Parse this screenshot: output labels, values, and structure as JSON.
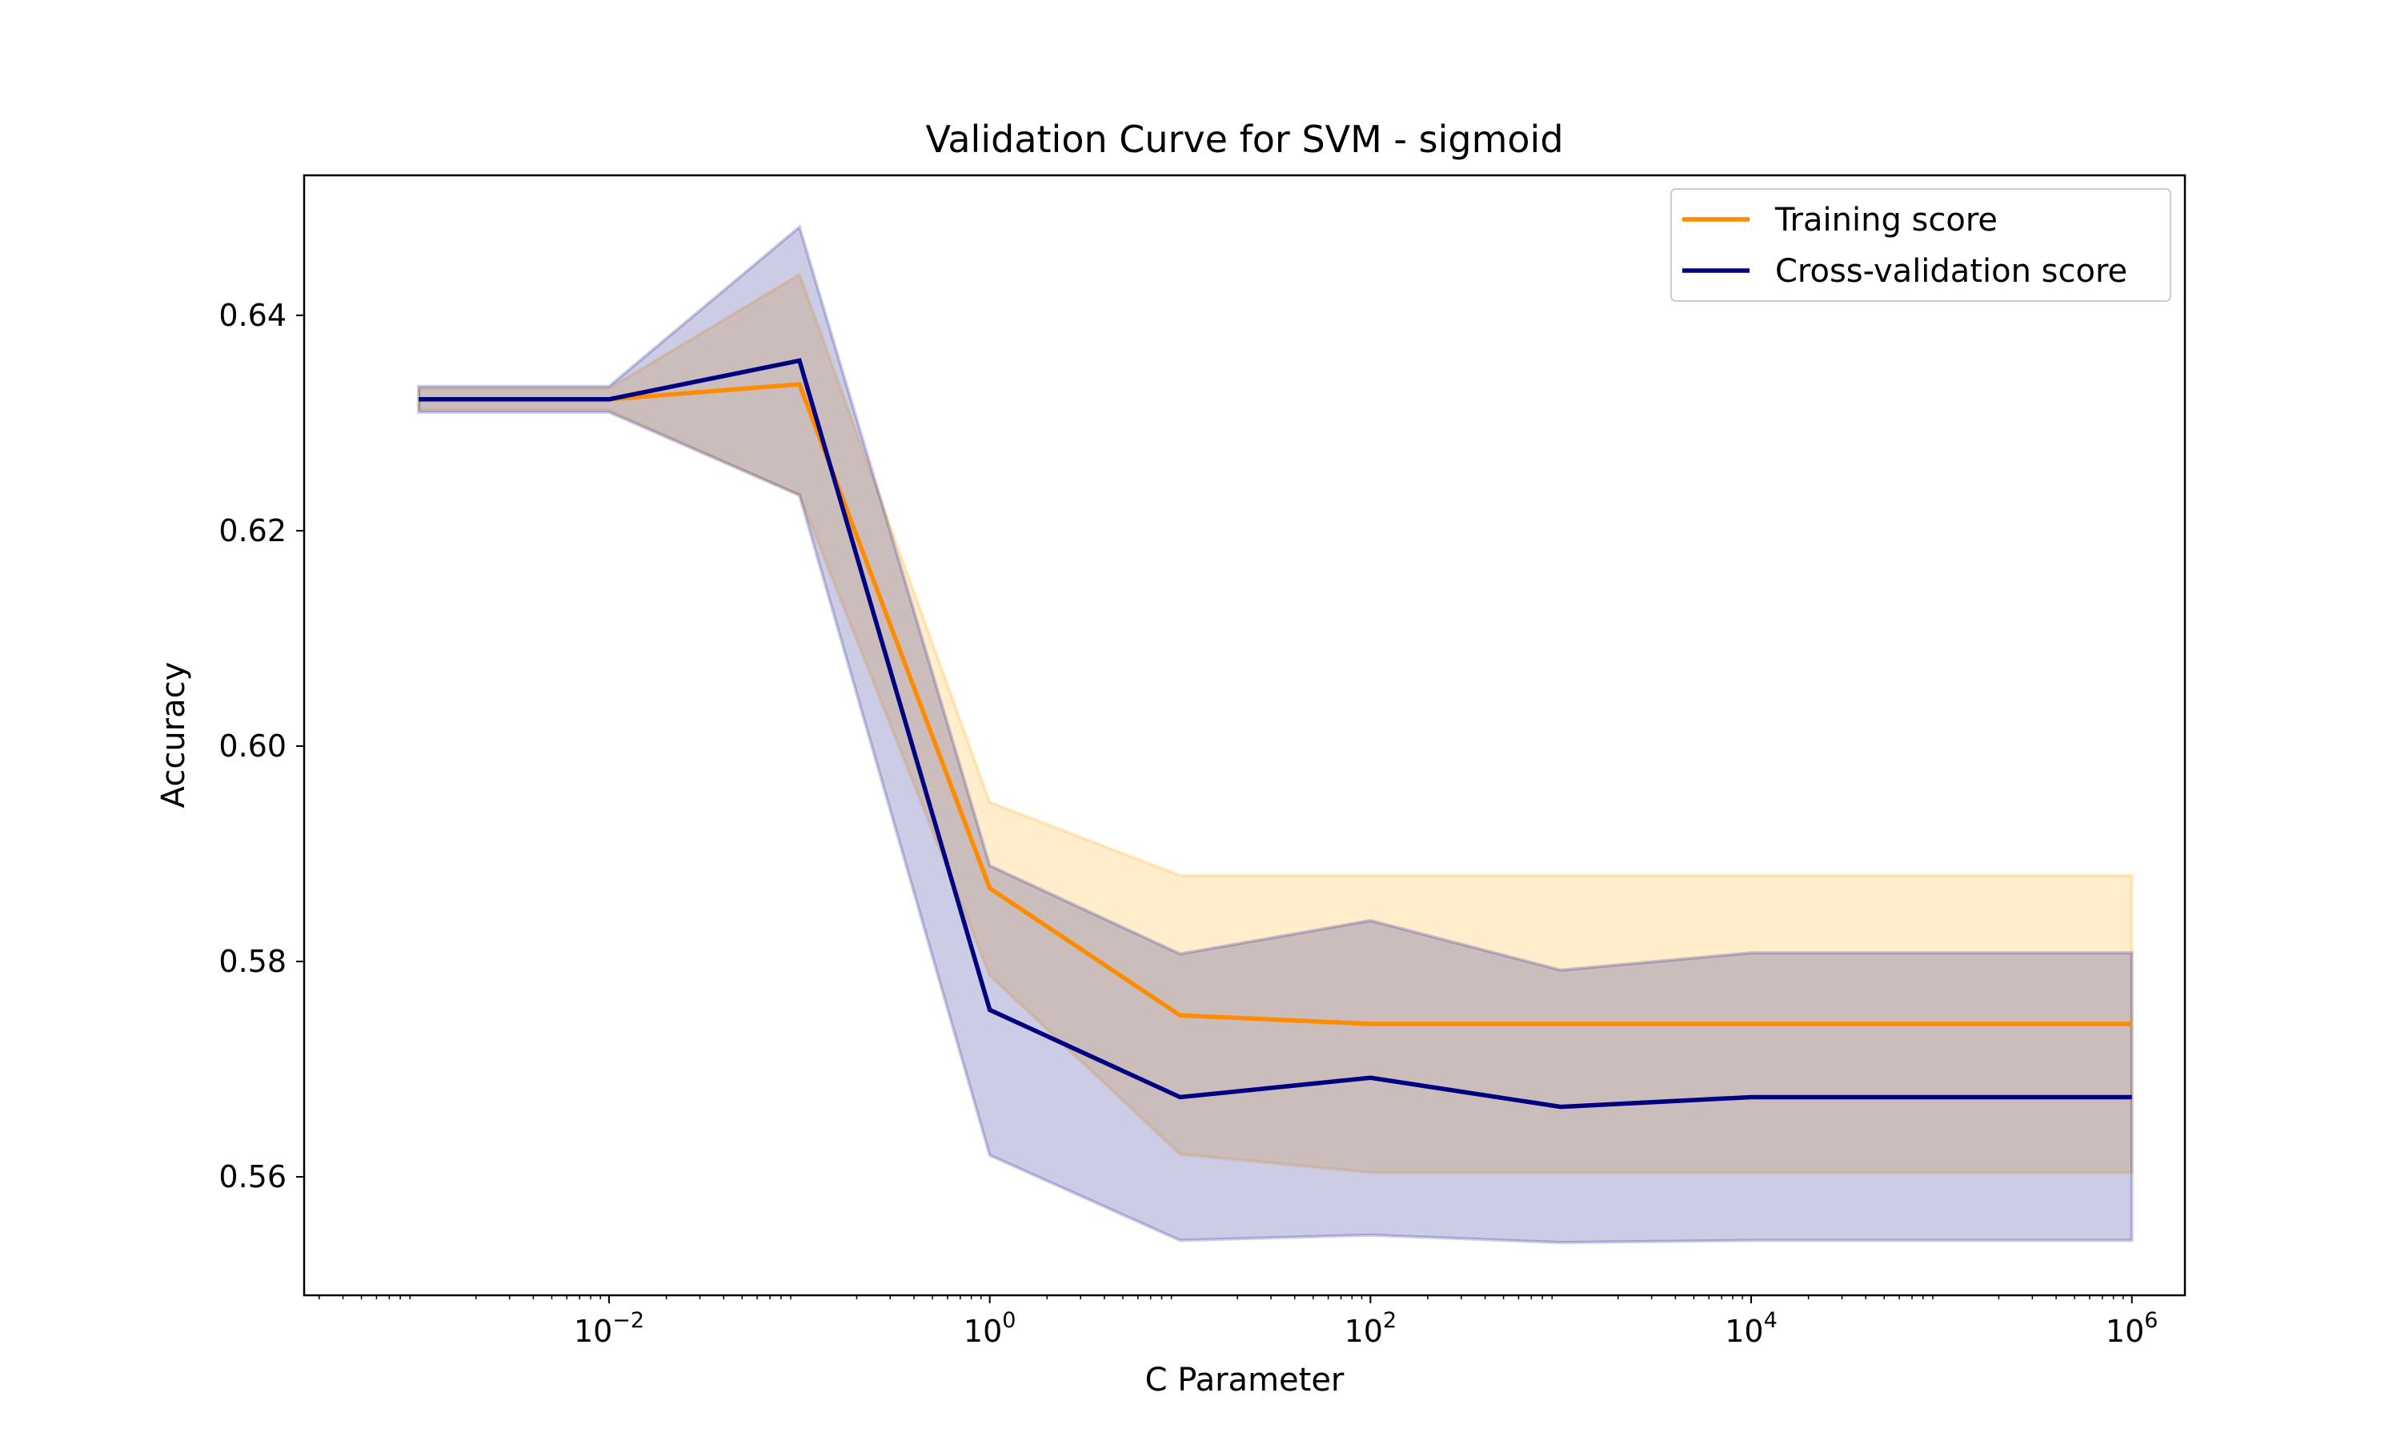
{
  "chart_data": {
    "type": "line",
    "title": "Validation Curve for SVM - sigmoid",
    "xlabel": "C Parameter",
    "ylabel": "Accuracy",
    "xscale": "log",
    "x": [
      0.001,
      0.01,
      0.1,
      1,
      10,
      100,
      1000,
      10000,
      100000,
      1000000
    ],
    "xlim": [
      0.00025,
      1900000
    ],
    "ylim": [
      0.549,
      0.653
    ],
    "grid": false,
    "legend_position": "top-right",
    "x_ticks": [
      {
        "value": 0.01,
        "base": "10",
        "exp": "−2"
      },
      {
        "value": 1,
        "base": "10",
        "exp": "0"
      },
      {
        "value": 100,
        "base": "10",
        "exp": "2"
      },
      {
        "value": 10000,
        "base": "10",
        "exp": "4"
      },
      {
        "value": 1000000,
        "base": "10",
        "exp": "6"
      }
    ],
    "y_ticks": [
      {
        "value": 0.56,
        "label": "0.56"
      },
      {
        "value": 0.58,
        "label": "0.58"
      },
      {
        "value": 0.6,
        "label": "0.60"
      },
      {
        "value": 0.62,
        "label": "0.62"
      },
      {
        "value": 0.64,
        "label": "0.64"
      }
    ],
    "series": [
      {
        "name": "Training score",
        "color": "#ff8c00",
        "band_color": "#ffa500",
        "values": [
          0.6322,
          0.6322,
          0.6336,
          0.5868,
          0.575,
          0.5742,
          0.5742,
          0.5742,
          0.5742,
          0.5742
        ],
        "lower": [
          0.6312,
          0.6312,
          0.6233,
          0.5787,
          0.5621,
          0.5604,
          0.5604,
          0.5604,
          0.5604,
          0.5604
        ],
        "upper": [
          0.6332,
          0.6332,
          0.6438,
          0.5948,
          0.588,
          0.588,
          0.588,
          0.588,
          0.588,
          0.588
        ]
      },
      {
        "name": "Cross-validation score",
        "color": "#000080",
        "band_color": "#000080",
        "values": [
          0.6322,
          0.6322,
          0.6358,
          0.5755,
          0.5674,
          0.5692,
          0.5665,
          0.5674,
          0.5674,
          0.5674
        ],
        "lower": [
          0.631,
          0.631,
          0.6233,
          0.562,
          0.5541,
          0.5546,
          0.5539,
          0.5541,
          0.5541,
          0.5541
        ],
        "upper": [
          0.6334,
          0.6334,
          0.6482,
          0.5889,
          0.5807,
          0.5838,
          0.5792,
          0.5808,
          0.5808,
          0.5808
        ]
      }
    ]
  }
}
